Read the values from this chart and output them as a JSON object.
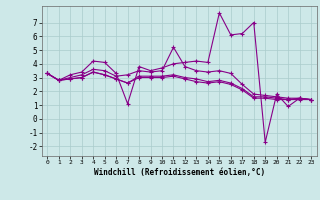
{
  "bg_color": "#cde8e8",
  "grid_color": "#aacccc",
  "line_color": "#880088",
  "marker": "+",
  "markersize": 3,
  "linewidth": 0.8,
  "xlabel": "Windchill (Refroidissement éolien,°C)",
  "xlim": [
    -0.5,
    23.5
  ],
  "ylim": [
    -2.7,
    8.2
  ],
  "yticks": [
    -2,
    -1,
    0,
    1,
    2,
    3,
    4,
    5,
    6,
    7
  ],
  "xticks": [
    0,
    1,
    2,
    3,
    4,
    5,
    6,
    7,
    8,
    9,
    10,
    11,
    12,
    13,
    14,
    15,
    16,
    17,
    18,
    19,
    20,
    21,
    22,
    23
  ],
  "series": [
    [
      3.3,
      2.8,
      3.2,
      3.4,
      4.2,
      4.1,
      3.3,
      1.1,
      3.8,
      3.5,
      3.7,
      4.0,
      4.1,
      4.2,
      4.1,
      7.7,
      6.1,
      6.2,
      7.0,
      -1.7,
      1.8,
      0.9,
      1.5,
      1.4
    ],
    [
      3.3,
      2.8,
      3.0,
      3.2,
      3.6,
      3.5,
      3.1,
      3.2,
      3.5,
      3.4,
      3.5,
      5.2,
      3.8,
      3.5,
      3.4,
      3.5,
      3.3,
      2.5,
      1.8,
      1.7,
      1.6,
      1.5,
      1.5,
      1.4
    ],
    [
      3.3,
      2.8,
      2.9,
      3.0,
      3.4,
      3.2,
      2.9,
      2.6,
      3.1,
      3.1,
      3.1,
      3.2,
      3.0,
      2.9,
      2.7,
      2.8,
      2.6,
      2.2,
      1.6,
      1.6,
      1.5,
      1.4,
      1.5,
      1.4
    ],
    [
      3.3,
      2.8,
      2.9,
      3.0,
      3.4,
      3.2,
      2.9,
      2.6,
      3.0,
      3.0,
      3.0,
      3.1,
      2.9,
      2.7,
      2.6,
      2.7,
      2.5,
      2.1,
      1.5,
      1.5,
      1.4,
      1.4,
      1.4,
      1.4
    ]
  ]
}
